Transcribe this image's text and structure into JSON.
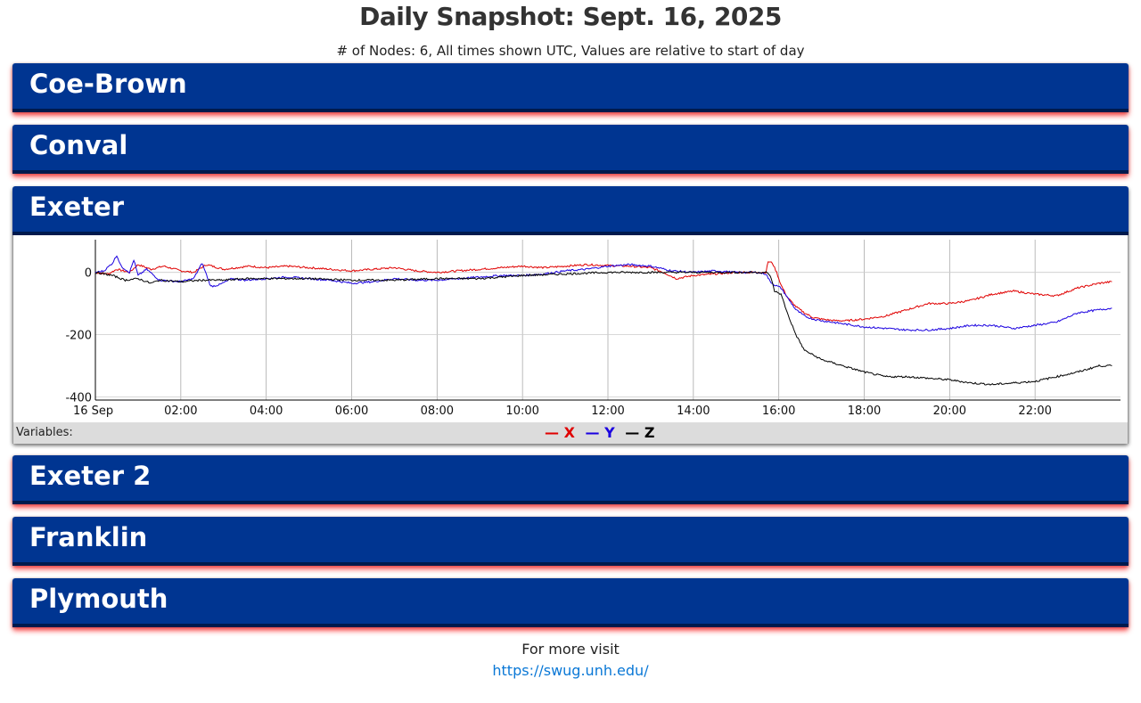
{
  "page": {
    "title": "Daily Snapshot: Sept. 16, 2025",
    "subtitle": "# of Nodes: 6, All times shown UTC, Values are relative to start of day"
  },
  "sites": [
    {
      "name": "Coe-Brown",
      "expanded": false
    },
    {
      "name": "Conval",
      "expanded": false
    },
    {
      "name": "Exeter",
      "expanded": true
    },
    {
      "name": "Exeter 2",
      "expanded": false
    },
    {
      "name": "Franklin",
      "expanded": false
    },
    {
      "name": "Plymouth",
      "expanded": false
    }
  ],
  "legend": {
    "label": "Variables:",
    "items": [
      {
        "glyph": "—",
        "name": "X",
        "color": "#e00000"
      },
      {
        "glyph": "—",
        "name": "Y",
        "color": "#1a00e0"
      },
      {
        "glyph": "—",
        "name": "Z",
        "color": "#000000"
      }
    ]
  },
  "chart_data": {
    "type": "line",
    "title": "",
    "xlabel": "",
    "ylabel": "",
    "xlim": [
      0,
      24
    ],
    "ylim": [
      -410,
      105
    ],
    "yticks": [
      0,
      -200,
      -400
    ],
    "xtick_labels": [
      "16 Sep",
      "02:00",
      "04:00",
      "06:00",
      "08:00",
      "10:00",
      "12:00",
      "14:00",
      "16:00",
      "18:00",
      "20:00",
      "22:00"
    ],
    "grid": true,
    "legend_position": "bottom",
    "series": [
      {
        "name": "X",
        "color": "#e00000",
        "x": [
          0,
          0.3,
          0.5,
          0.8,
          1.0,
          1.3,
          1.6,
          2.0,
          2.3,
          2.6,
          3.0,
          3.3,
          3.6,
          4.0,
          4.5,
          5.0,
          5.5,
          6.0,
          6.5,
          7.0,
          7.5,
          8.0,
          8.5,
          9.0,
          9.5,
          10.0,
          10.5,
          11.0,
          11.5,
          12.0,
          12.5,
          13.0,
          13.3,
          13.6,
          14.0,
          14.5,
          15.0,
          15.5,
          15.7,
          15.75,
          15.85,
          15.95,
          16.05,
          16.2,
          16.4,
          16.6,
          16.8,
          17.0,
          17.3,
          17.6,
          18.0,
          18.5,
          19.0,
          19.5,
          20.0,
          20.5,
          21.0,
          21.5,
          22.0,
          22.5,
          23.0,
          23.5,
          23.8
        ],
        "y": [
          0,
          -5,
          10,
          0,
          25,
          10,
          20,
          5,
          0,
          25,
          10,
          15,
          20,
          15,
          20,
          15,
          10,
          5,
          10,
          15,
          5,
          0,
          5,
          10,
          15,
          20,
          15,
          20,
          25,
          22,
          20,
          15,
          0,
          -20,
          -10,
          -5,
          0,
          0,
          0,
          35,
          30,
          0,
          -40,
          -80,
          -110,
          -130,
          -145,
          -150,
          -155,
          -155,
          -150,
          -140,
          -120,
          -100,
          -100,
          -90,
          -70,
          -60,
          -70,
          -75,
          -50,
          -35,
          -30
        ]
      },
      {
        "name": "Y",
        "color": "#1a00e0",
        "x": [
          0,
          0.2,
          0.4,
          0.5,
          0.6,
          0.8,
          0.9,
          1.0,
          1.2,
          1.5,
          2.0,
          2.3,
          2.5,
          2.7,
          2.9,
          3.2,
          3.5,
          4.0,
          4.5,
          5.0,
          5.5,
          6.0,
          6.5,
          7.0,
          7.5,
          8.0,
          8.5,
          9.0,
          9.5,
          10.0,
          10.5,
          11.0,
          11.5,
          12.0,
          12.5,
          13.0,
          13.5,
          14.0,
          14.5,
          15.0,
          15.5,
          15.7,
          15.8,
          15.9,
          16.05,
          16.2,
          16.4,
          16.6,
          16.8,
          17.0,
          17.5,
          18.0,
          18.5,
          19.0,
          19.5,
          20.0,
          20.5,
          21.0,
          21.5,
          22.0,
          22.5,
          23.0,
          23.5,
          23.8
        ],
        "y": [
          0,
          5,
          30,
          55,
          20,
          0,
          40,
          -10,
          10,
          -25,
          -30,
          -20,
          30,
          -45,
          -40,
          -20,
          -25,
          -20,
          -15,
          -20,
          -25,
          -35,
          -30,
          -20,
          -25,
          -25,
          -20,
          -15,
          -10,
          -10,
          -5,
          5,
          10,
          20,
          25,
          20,
          5,
          0,
          5,
          0,
          0,
          -5,
          -30,
          -40,
          -50,
          -80,
          -120,
          -140,
          -150,
          -155,
          -165,
          -175,
          -180,
          -185,
          -185,
          -180,
          -170,
          -170,
          -180,
          -170,
          -160,
          -130,
          -120,
          -115
        ]
      },
      {
        "name": "Z",
        "color": "#000000",
        "x": [
          0,
          0.4,
          0.7,
          1.0,
          1.3,
          1.5,
          2.0,
          2.5,
          3.0,
          3.5,
          4.0,
          5.0,
          6.0,
          7.0,
          8.0,
          9.0,
          10.0,
          11.0,
          12.0,
          13.0,
          14.0,
          15.0,
          15.5,
          15.7,
          15.8,
          15.9,
          16.05,
          16.2,
          16.4,
          16.6,
          16.8,
          17.0,
          17.5,
          18.0,
          18.5,
          19.0,
          19.5,
          20.0,
          20.5,
          21.0,
          21.5,
          22.0,
          22.5,
          23.0,
          23.5,
          23.8
        ],
        "y": [
          0,
          -10,
          -25,
          -20,
          -35,
          -25,
          -30,
          -25,
          -25,
          -20,
          -20,
          -20,
          -25,
          -25,
          -20,
          -20,
          -10,
          -5,
          0,
          0,
          0,
          0,
          0,
          0,
          -10,
          -60,
          -70,
          -130,
          -200,
          -250,
          -265,
          -280,
          -300,
          -320,
          -335,
          -335,
          -340,
          -345,
          -355,
          -360,
          -355,
          -350,
          -335,
          -320,
          -300,
          -300
        ]
      }
    ]
  },
  "footer": {
    "text": "For more visit",
    "link_text": "https://swug.unh.edu/"
  }
}
